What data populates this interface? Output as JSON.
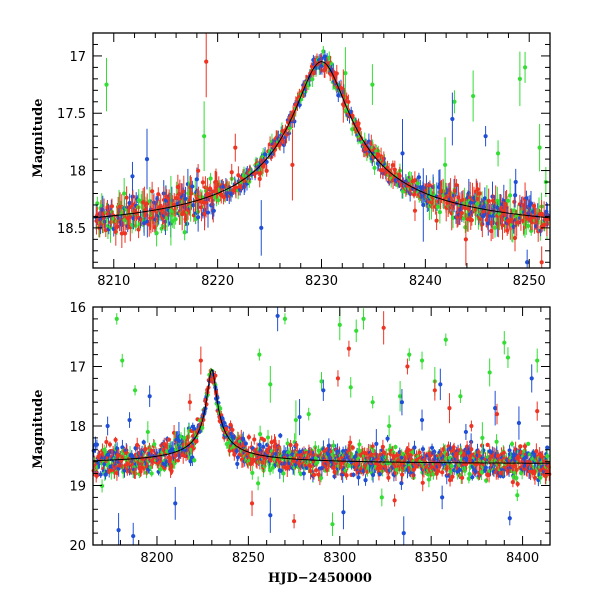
{
  "colors": {
    "green": "#33dd33",
    "blue": "#1f4fd6",
    "red": "#ee3322",
    "model": "#000000"
  },
  "chart_data": [
    {
      "type": "scatter",
      "title": "",
      "xlabel": "",
      "ylabel": "Magnitude",
      "xlim": [
        8208,
        8252
      ],
      "ylim": [
        18.85,
        16.8
      ],
      "y_inverted": true,
      "xticks": [
        8210,
        8220,
        8230,
        8240,
        8250
      ],
      "yticks": [
        17,
        17.5,
        18,
        18.5
      ],
      "ytick_labels": [
        "17",
        "17.5",
        "18",
        "18.5"
      ],
      "grid": false,
      "model_curve": {
        "baseline": 18.6,
        "peak": 17.05,
        "t0": 8230.0,
        "tE": 5.5
      },
      "series": [
        {
          "color": "green",
          "points": [
            [
              8209.3,
              17.25
            ],
            [
              8211.0,
              18.2
            ],
            [
              8215.5,
              18.35
            ],
            [
              8218.7,
              17.7
            ],
            [
              8232.3,
              17.15
            ],
            [
              8234.9,
              17.25
            ],
            [
              8241.9,
              17.95
            ],
            [
              8242.8,
              17.4
            ],
            [
              8244.6,
              17.35
            ],
            [
              8247.0,
              17.85
            ],
            [
              8249.1,
              17.2
            ],
            [
              8249.6,
              17.1
            ],
            [
              8251.0,
              17.8
            ],
            [
              8251.6,
              18.1
            ]
          ]
        },
        {
          "color": "blue",
          "points": [
            [
              8211.8,
              18.05
            ],
            [
              8213.2,
              17.9
            ],
            [
              8224.2,
              18.5
            ],
            [
              8237.8,
              17.85
            ],
            [
              8239.8,
              18.3
            ],
            [
              8242.6,
              17.55
            ],
            [
              8245.8,
              17.7
            ],
            [
              8248.7,
              18.1
            ],
            [
              8249.8,
              18.8
            ]
          ]
        },
        {
          "color": "red",
          "points": [
            [
              8218.9,
              17.05
            ],
            [
              8221.7,
              17.8
            ],
            [
              8227.2,
              17.95
            ],
            [
              8232.1,
              17.35
            ],
            [
              8239.0,
              18.35
            ],
            [
              8243.9,
              18.6
            ],
            [
              8251.2,
              18.8
            ]
          ]
        }
      ]
    },
    {
      "type": "scatter",
      "title": "",
      "xlabel": "HJD−2450000",
      "ylabel": "Magnitude",
      "xlim": [
        8165,
        8415
      ],
      "ylim": [
        20,
        16
      ],
      "y_inverted": true,
      "xticks": [
        8200,
        8250,
        8300,
        8350,
        8400
      ],
      "yticks": [
        16,
        17,
        18,
        19,
        20
      ],
      "ytick_labels": [
        "16",
        "17",
        "18",
        "19",
        "20"
      ],
      "grid": false,
      "model_curve": {
        "baseline": 18.65,
        "peak": 17.05,
        "t0": 8230.0,
        "tE": 5.5
      },
      "series": [
        {
          "color": "green",
          "points": [
            [
              8178,
              16.2
            ],
            [
              8181,
              16.9
            ],
            [
              8188,
              17.4
            ],
            [
              8195,
              18.1
            ],
            [
              8215,
              18.2
            ],
            [
              8256,
              16.8
            ],
            [
              8262,
              17.3
            ],
            [
              8270,
              16.2
            ],
            [
              8276,
              17.9
            ],
            [
              8283,
              17.8
            ],
            [
              8290,
              17.25
            ],
            [
              8300,
              16.3
            ],
            [
              8306,
              17.35
            ],
            [
              8309,
              16.4
            ],
            [
              8313,
              16.2
            ],
            [
              8318,
              17.6
            ],
            [
              8327,
              18.0
            ],
            [
              8333,
              17.5
            ],
            [
              8338,
              16.8
            ],
            [
              8345,
              16.9
            ],
            [
              8352,
              17.25
            ],
            [
              8358,
              16.55
            ],
            [
              8366,
              17.5
            ],
            [
              8378,
              18.2
            ],
            [
              8382,
              17.1
            ],
            [
              8390,
              16.6
            ],
            [
              8392,
              16.85
            ],
            [
              8408,
              16.9
            ],
            [
              8296,
              19.65
            ],
            [
              8323,
              19.2
            ]
          ]
        },
        {
          "color": "blue",
          "points": [
            [
              8173,
              18.0
            ],
            [
              8185,
              17.9
            ],
            [
              8196,
              17.5
            ],
            [
              8212,
              18.25
            ],
            [
              8266,
              16.15
            ],
            [
              8278,
              17.85
            ],
            [
              8291,
              17.4
            ],
            [
              8320,
              18.3
            ],
            [
              8334,
              17.6
            ],
            [
              8345,
              17.9
            ],
            [
              8355,
              17.3
            ],
            [
              8369,
              18.1
            ],
            [
              8385,
              17.7
            ],
            [
              8398,
              17.95
            ],
            [
              8405,
              17.2
            ],
            [
              8179,
              19.75
            ],
            [
              8187,
              19.85
            ],
            [
              8210,
              19.3
            ],
            [
              8262,
              19.5
            ],
            [
              8302,
              19.45
            ],
            [
              8335,
              19.8
            ],
            [
              8356,
              19.2
            ],
            [
              8393,
              19.55
            ]
          ]
        },
        {
          "color": "red",
          "points": [
            [
              8218,
              17.6
            ],
            [
              8224,
              16.9
            ],
            [
              8299,
              17.2
            ],
            [
              8305,
              16.7
            ],
            [
              8324,
              16.35
            ],
            [
              8337,
              17.0
            ],
            [
              8352,
              17.4
            ],
            [
              8360,
              17.7
            ],
            [
              8372,
              18.0
            ],
            [
              8386,
              17.8
            ],
            [
              8408,
              17.75
            ],
            [
              8252,
              19.3
            ],
            [
              8275,
              19.6
            ],
            [
              8330,
              19.25
            ]
          ]
        }
      ]
    }
  ]
}
